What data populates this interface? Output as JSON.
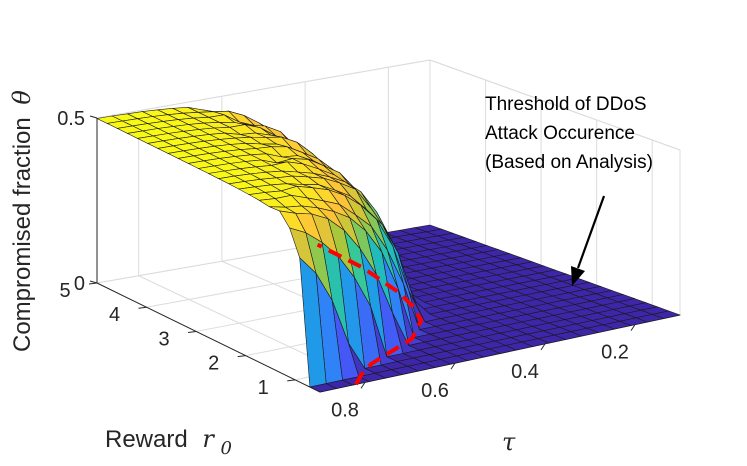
{
  "chart_data": {
    "type": "surface",
    "title": "",
    "zlabel_text": "Compromised fraction",
    "zlabel_symbol": "θ",
    "ylabel_text": "Reward",
    "ylabel_symbol": "r",
    "ylabel_sub": "0",
    "xlabel_symbol": "τ",
    "x_ticks": [
      "0.2",
      "0.4",
      "0.6",
      "0.8"
    ],
    "y_ticks": [
      "1",
      "2",
      "3",
      "4",
      "5"
    ],
    "z_ticks": [
      "0",
      "0.5"
    ],
    "xlim": [
      0.1,
      0.9
    ],
    "ylim": [
      0.5,
      5
    ],
    "zlim": [
      0,
      0.5
    ],
    "annotation_lines": [
      "Threshold of DDoS",
      "Attack Occurence",
      "(Based on Analysis)"
    ],
    "threshold_color": "#ff0000",
    "colormap": "parula",
    "grid": true,
    "surface_model": "theta = 0.5*(1 - exp(-(tau - tau_c(r0))/0.09)) for tau > tau_c, else 0; tau_c(r0) ≈ 0.28 + 0.45/r0",
    "threshold_curve": {
      "r0": [
        0.5,
        0.75,
        1.0,
        1.5,
        2.0,
        2.5,
        3.0,
        4.0,
        5.0
      ],
      "tau": [
        0.82,
        0.78,
        0.73,
        0.58,
        0.5,
        0.46,
        0.43,
        0.39,
        0.37
      ]
    }
  }
}
